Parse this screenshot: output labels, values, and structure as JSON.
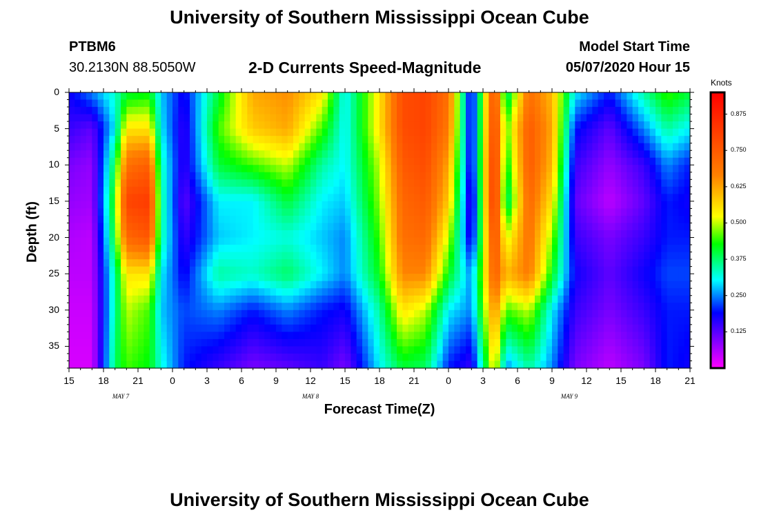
{
  "header": {
    "title_top": "University of Southern Mississippi Ocean Cube",
    "station_id": "PTBM6",
    "coordinates": "30.2130N 88.5050W",
    "plot_title": "2-D Currents Speed-Magnitude",
    "model_start_label": "Model Start Time",
    "model_start_value": "05/07/2020 Hour 15"
  },
  "footer": {
    "title_bottom": "University of Southern Mississippi Ocean Cube"
  },
  "chart_data": {
    "type": "heatmap",
    "title": "2-D Currents Speed-Magnitude",
    "xlabel": "Forecast Time(Z)",
    "ylabel": "Depth (ft)",
    "colorbar_label": "Knots",
    "x_tick_labels": [
      "15",
      "18",
      "21",
      "0",
      "3",
      "6",
      "9",
      "12",
      "15",
      "18",
      "21",
      "0",
      "3",
      "6",
      "9",
      "12",
      "15",
      "18",
      "21"
    ],
    "x_date_labels": [
      "MAY 7",
      "MAY 8",
      "MAY 9"
    ],
    "y_ticks": [
      0,
      5,
      10,
      15,
      20,
      25,
      30,
      35
    ],
    "ylim": [
      0,
      38
    ],
    "y_inverted": true,
    "x_hours_range": [
      0,
      54
    ],
    "colorbar_ticks": [
      "0.125",
      "0.250",
      "0.375",
      "0.500",
      "0.625",
      "0.750",
      "0.875"
    ],
    "color_range": [
      0.0,
      0.95
    ],
    "colors": {
      "magenta": "#ff00ff",
      "violet": "#8000ff",
      "blue": "#0000ff",
      "cyan": "#00ffff",
      "green": "#00ff00",
      "yellow": "#ffff00",
      "orange": "#ff8000",
      "red": "#ff0000"
    },
    "time_columns": [
      {
        "hour": 0,
        "speeds_by_depth": [
          0.18,
          0.15,
          0.1,
          0.08,
          0.06,
          0.05,
          0.04,
          0.03
        ]
      },
      {
        "hour": 2,
        "speeds_by_depth": [
          0.25,
          0.12,
          0.08,
          0.07,
          0.05,
          0.05,
          0.04,
          0.03
        ]
      },
      {
        "hour": 4,
        "speeds_by_depth": [
          0.33,
          0.3,
          0.4,
          0.45,
          0.42,
          0.35,
          0.35,
          0.38
        ]
      },
      {
        "hour": 5,
        "speeds_by_depth": [
          0.4,
          0.55,
          0.7,
          0.8,
          0.72,
          0.55,
          0.5,
          0.45
        ]
      },
      {
        "hour": 7,
        "speeds_by_depth": [
          0.42,
          0.55,
          0.74,
          0.82,
          0.76,
          0.55,
          0.45,
          0.42
        ]
      },
      {
        "hour": 8,
        "speeds_by_depth": [
          0.28,
          0.3,
          0.34,
          0.36,
          0.35,
          0.3,
          0.28,
          0.32
        ]
      },
      {
        "hour": 10,
        "speeds_by_depth": [
          0.18,
          0.15,
          0.15,
          0.12,
          0.15,
          0.18,
          0.22,
          0.2
        ]
      },
      {
        "hour": 13,
        "speeds_by_depth": [
          0.4,
          0.45,
          0.4,
          0.3,
          0.28,
          0.35,
          0.25,
          0.15
        ]
      },
      {
        "hour": 16,
        "speeds_by_depth": [
          0.62,
          0.58,
          0.45,
          0.3,
          0.3,
          0.33,
          0.2,
          0.1
        ]
      },
      {
        "hour": 19,
        "speeds_by_depth": [
          0.65,
          0.62,
          0.5,
          0.4,
          0.32,
          0.38,
          0.25,
          0.12
        ]
      },
      {
        "hour": 22,
        "speeds_by_depth": [
          0.55,
          0.45,
          0.35,
          0.3,
          0.28,
          0.3,
          0.2,
          0.15
        ]
      },
      {
        "hour": 24,
        "speeds_by_depth": [
          0.3,
          0.3,
          0.3,
          0.28,
          0.25,
          0.25,
          0.18,
          0.1
        ]
      },
      {
        "hour": 27,
        "speeds_by_depth": [
          0.55,
          0.55,
          0.5,
          0.48,
          0.45,
          0.42,
          0.35,
          0.3
        ]
      },
      {
        "hour": 29,
        "speeds_by_depth": [
          0.78,
          0.78,
          0.75,
          0.72,
          0.7,
          0.66,
          0.55,
          0.4
        ]
      },
      {
        "hour": 31,
        "speeds_by_depth": [
          0.8,
          0.8,
          0.78,
          0.75,
          0.72,
          0.66,
          0.5,
          0.38
        ]
      },
      {
        "hour": 33,
        "speeds_by_depth": [
          0.7,
          0.68,
          0.62,
          0.58,
          0.5,
          0.42,
          0.3,
          0.2
        ]
      },
      {
        "hour": 35,
        "speeds_by_depth": [
          0.15,
          0.15,
          0.15,
          0.12,
          0.15,
          0.25,
          0.25,
          0.15
        ]
      },
      {
        "hour": 37,
        "speeds_by_depth": [
          0.8,
          0.82,
          0.85,
          0.86,
          0.8,
          0.75,
          0.66,
          0.55
        ]
      },
      {
        "hour": 38,
        "speeds_by_depth": [
          0.35,
          0.45,
          0.4,
          0.35,
          0.5,
          0.6,
          0.45,
          0.25
        ]
      },
      {
        "hour": 40,
        "speeds_by_depth": [
          0.7,
          0.75,
          0.75,
          0.72,
          0.7,
          0.68,
          0.5,
          0.35
        ]
      },
      {
        "hour": 42,
        "speeds_by_depth": [
          0.6,
          0.62,
          0.6,
          0.55,
          0.48,
          0.42,
          0.3,
          0.25
        ]
      },
      {
        "hour": 44,
        "speeds_by_depth": [
          0.3,
          0.2,
          0.15,
          0.12,
          0.15,
          0.18,
          0.15,
          0.1
        ]
      },
      {
        "hour": 47,
        "speeds_by_depth": [
          0.2,
          0.12,
          0.08,
          0.05,
          0.1,
          0.12,
          0.1,
          0.05
        ]
      },
      {
        "hour": 50,
        "speeds_by_depth": [
          0.35,
          0.25,
          0.15,
          0.12,
          0.15,
          0.18,
          0.15,
          0.1
        ]
      },
      {
        "hour": 52,
        "speeds_by_depth": [
          0.45,
          0.35,
          0.25,
          0.2,
          0.2,
          0.22,
          0.2,
          0.2
        ]
      },
      {
        "hour": 54,
        "speeds_by_depth": [
          0.4,
          0.3,
          0.2,
          0.18,
          0.2,
          0.22,
          0.2,
          0.18
        ]
      }
    ],
    "depth_samples": [
      0,
      5,
      10,
      15,
      20,
      25,
      30,
      38
    ]
  }
}
